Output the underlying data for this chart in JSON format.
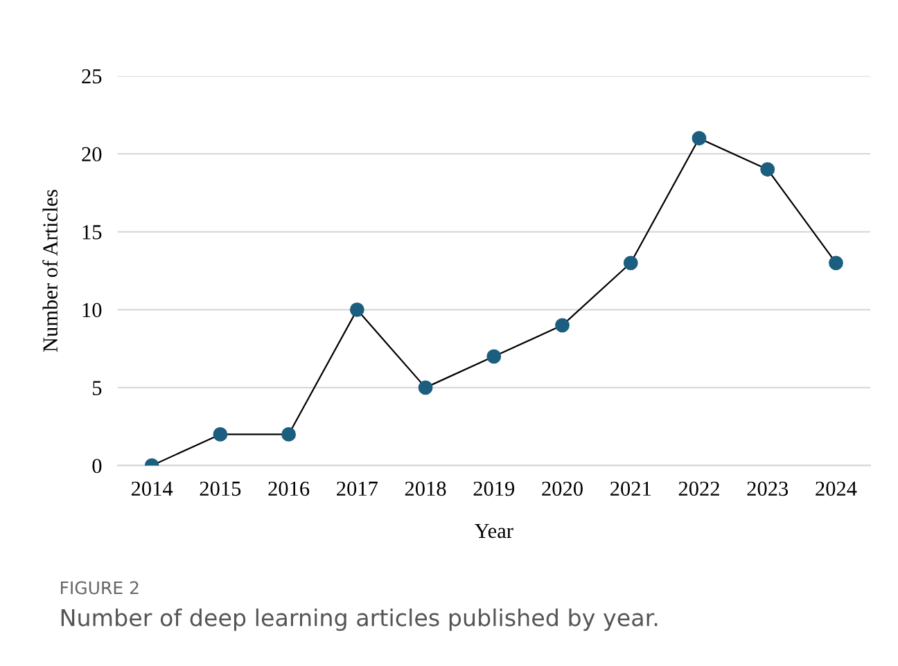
{
  "chart_data": {
    "type": "line",
    "xlabel": "Year",
    "ylabel": "Number of Articles",
    "categories": [
      "2014",
      "2015",
      "2016",
      "2017",
      "2018",
      "2019",
      "2020",
      "2021",
      "2022",
      "2023",
      "2024"
    ],
    "series": [
      {
        "color": "#1b5e80",
        "values": [
          0,
          2,
          2,
          10,
          5,
          7,
          9,
          13,
          21,
          19,
          13
        ]
      }
    ],
    "ylim": [
      0,
      25
    ],
    "yticks": [
      0,
      5,
      10,
      15,
      20,
      25
    ],
    "grid": "y",
    "marker": "circle",
    "line_style": "solid",
    "annotations": [
      "FIGURE 2",
      "Number of deep learning articles published by year."
    ]
  }
}
